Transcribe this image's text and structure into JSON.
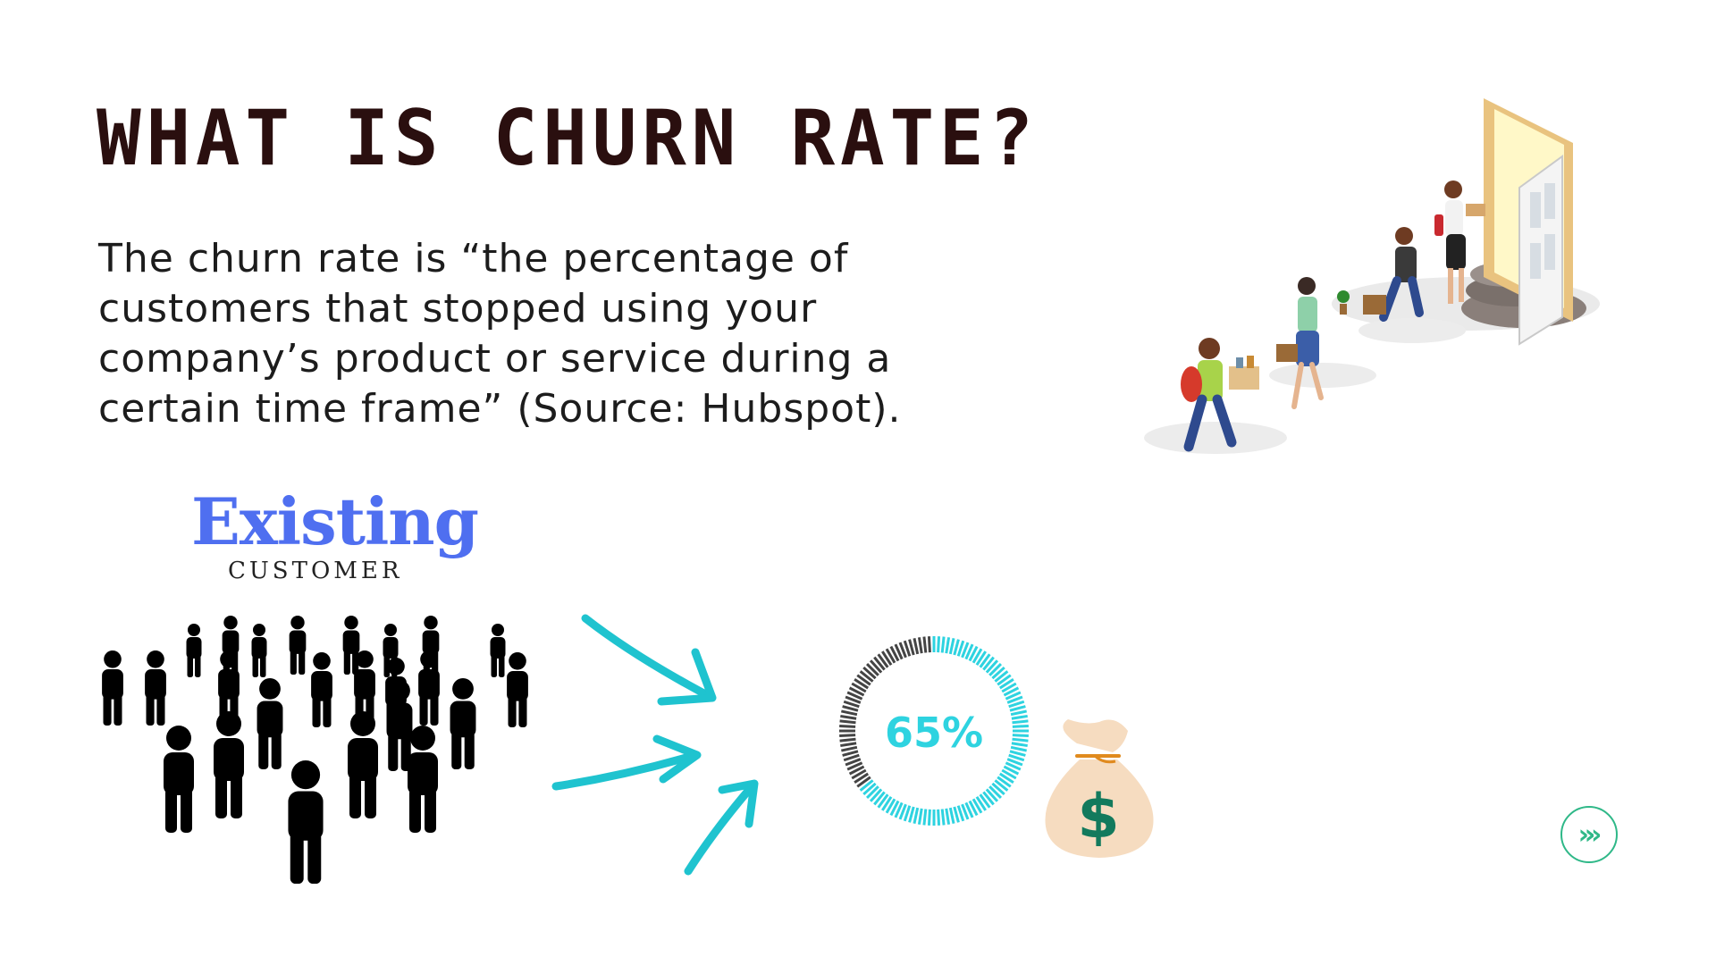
{
  "slide": {
    "title": "WHAT IS CHURN RATE?",
    "description_lines": [
      "The churn rate is “the percentage of",
      "customers that stopped using your",
      "company’s product or service during a",
      "certain time frame” (Source: Hubspot)."
    ]
  },
  "crowd_label": {
    "existing": "Existing",
    "customer": "CUSTOMER"
  },
  "gauge": {
    "label": "65%",
    "value": 65,
    "filled_color": "#2ed3e0",
    "remaining_color": "#444444"
  },
  "icons": {
    "crowd": "people-crowd-icon",
    "arrows": "arrow-icon",
    "money_bag": "money-bag-icon",
    "door": "door-exit-illustration",
    "next": "double-chevron-right-icon"
  },
  "money_bag": {
    "symbol": "$"
  },
  "nav": {
    "next_symbol": "»»",
    "accent": "#2fb888"
  },
  "colors": {
    "title": "#2a0f0f",
    "existing": "#4f6ff0",
    "arrows": "#1fc3cf"
  }
}
